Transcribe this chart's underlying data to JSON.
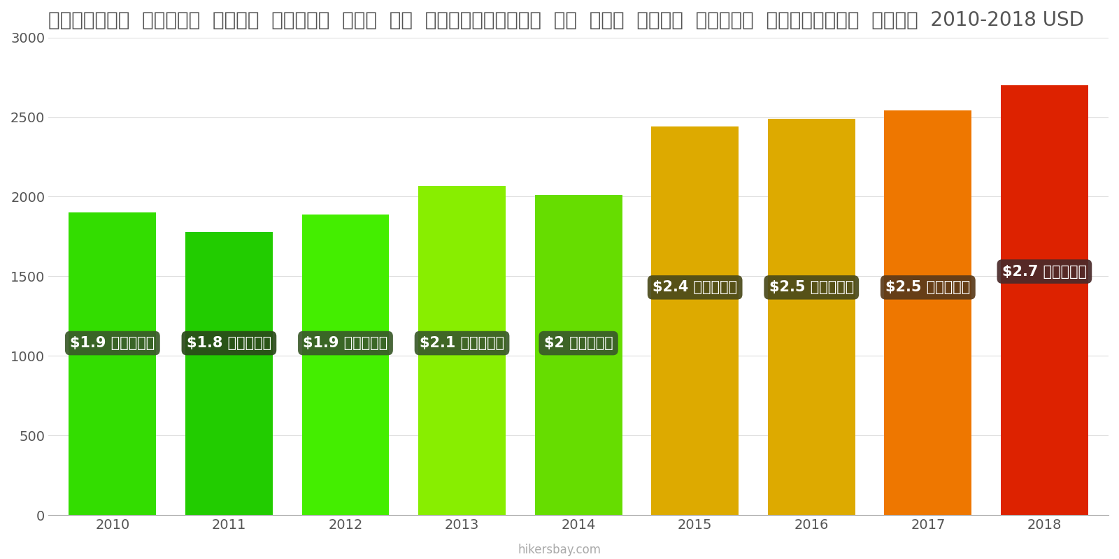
{
  "years": [
    2010,
    2011,
    2012,
    2013,
    2014,
    2015,
    2016,
    2017,
    2018
  ],
  "values": [
    1900,
    1780,
    1890,
    2070,
    2010,
    2440,
    2490,
    2540,
    2700
  ],
  "bar_colors": [
    "#33dd00",
    "#22cc00",
    "#44ee00",
    "#88ee00",
    "#66dd00",
    "#ddaa00",
    "#ddaa00",
    "#ee7700",
    "#dd2200"
  ],
  "label_texts": [
    "$1.9 हज़ार",
    "$1.8 हज़ार",
    "$1.9 हज़ार",
    "$2.1 हज़ार",
    "$2 हज़ार",
    "$2.4 हज़ार",
    "$2.5 हज़ार",
    "$2.5 हज़ार",
    "$2.7 हज़ार"
  ],
  "label_bg_colors": [
    "#3a5a2a",
    "#2a4a1a",
    "#3a5a2a",
    "#3a5a2a",
    "#3a5a2a",
    "#4a4a1a",
    "#4a4a1a",
    "#5a3a1a",
    "#4a2a2a"
  ],
  "title": "संयुक्त  राज्य  सिटी  सेंटर  में  एक  अपार्टमेंट  के  लिए  कीमत  प्रति  स्क्वायर  मीटर  2010-2018 USD",
  "ylabel_ticks": [
    0,
    500,
    1000,
    1500,
    2000,
    2500,
    3000
  ],
  "ylim": [
    0,
    3000
  ],
  "footer": "hikersbay.com",
  "bg_color": "#ffffff",
  "grid_color": "#dddddd",
  "bar_width": 0.75,
  "label_y_position": [
    1080,
    1080,
    1080,
    1080,
    1080,
    1430,
    1430,
    1430,
    1530
  ]
}
